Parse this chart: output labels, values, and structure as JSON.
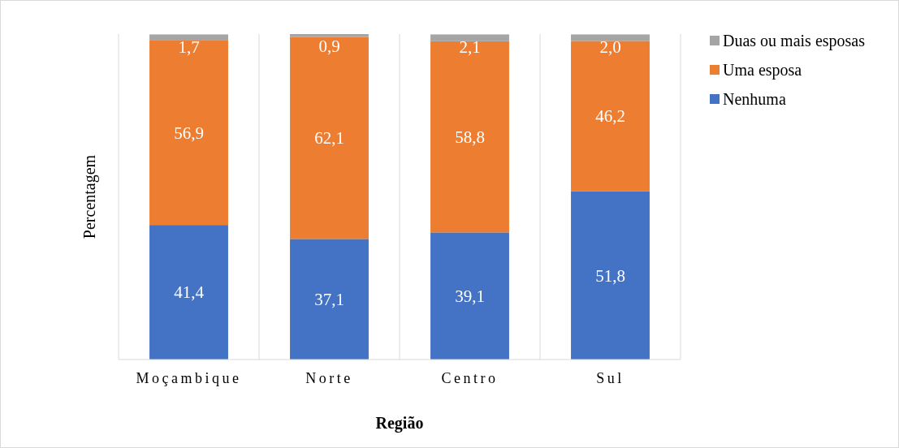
{
  "chart_data": {
    "type": "bar",
    "stacked": true,
    "xlabel": "Região",
    "ylabel": "Percentagem",
    "categories": [
      "Moçambique",
      "Norte",
      "Centro",
      "Sul"
    ],
    "series": [
      {
        "name": "Nenhuma",
        "color": "#4472c4",
        "values": [
          41.4,
          37.1,
          39.1,
          51.8
        ],
        "value_labels": [
          "41,4",
          "37,1",
          "39,1",
          "51,8"
        ]
      },
      {
        "name": "Uma esposa",
        "color": "#ed7d31",
        "values": [
          56.9,
          62.1,
          58.8,
          46.2
        ],
        "value_labels": [
          "56,9",
          "62,1",
          "58,8",
          "46,2"
        ]
      },
      {
        "name": "Duas ou mais esposas",
        "color": "#a5a5a5",
        "values": [
          1.7,
          0.9,
          2.1,
          2.0
        ],
        "value_labels": [
          "1,7",
          "0,9",
          "2,1",
          "2,0"
        ]
      }
    ],
    "grid": "x",
    "legend": "top right"
  }
}
